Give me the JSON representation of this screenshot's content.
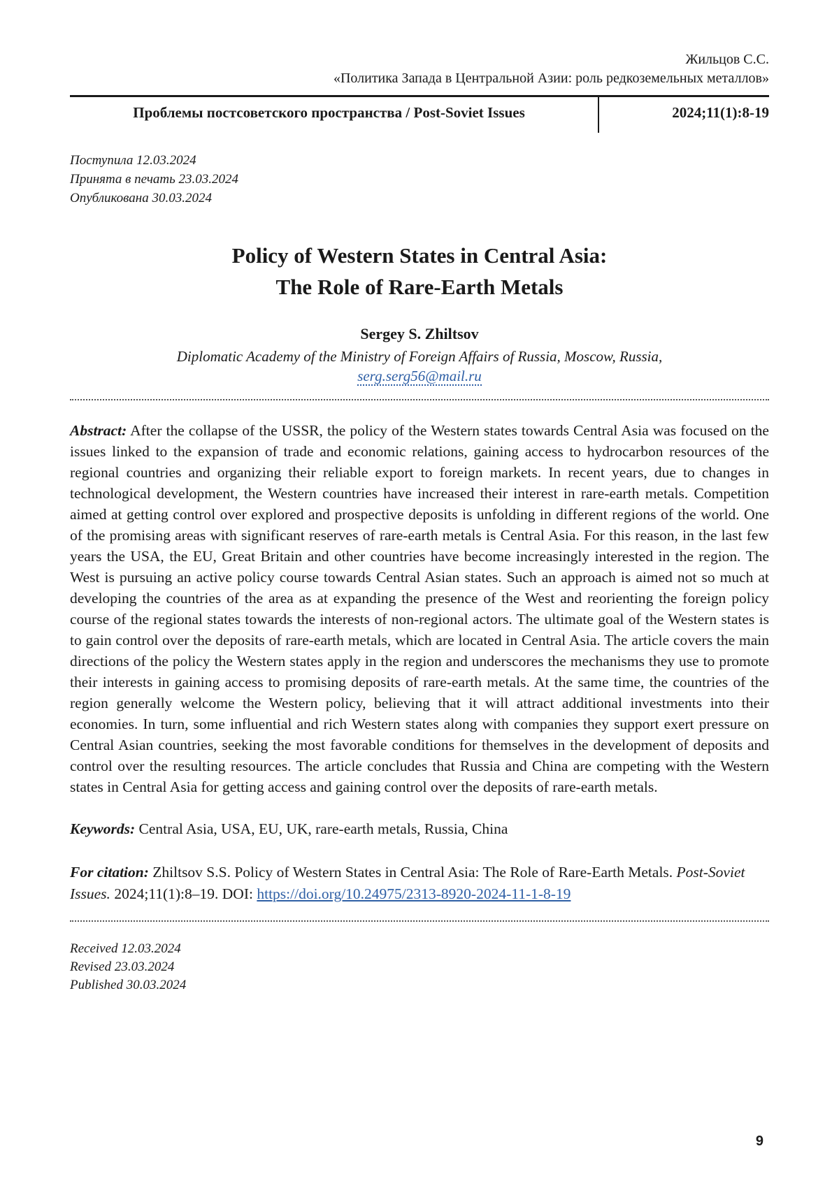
{
  "running_head": {
    "author": "Жильцов С.С.",
    "article_title_ru": "«Политика Запада в Центральной Азии: роль редкоземельных металлов»"
  },
  "journal_bar": {
    "journal_title": "Проблемы постсоветского пространства / Post-Soviet Issues",
    "issue_info": "2024;11(1):8-19"
  },
  "dates_ru": {
    "received": "Поступила 12.03.2024",
    "accepted": "Принята в печать 23.03.2024",
    "published": "Опубликована 30.03.2024"
  },
  "article": {
    "title_line1": "Policy of Western States in Central Asia:",
    "title_line2": "The Role of Rare-Earth Metals",
    "author": "Sergey S. Zhiltsov",
    "affiliation": "Diplomatic Academy of the Ministry of Foreign Affairs of Russia, Moscow, Russia,",
    "email": "serg.serg56@mail.ru"
  },
  "abstract": {
    "label": "Abstract:",
    "text": "After the collapse of the USSR, the policy of the Western states towards Central Asia was focused on the issues linked to the expansion of trade and economic relations, gaining access to hydrocarbon resources of the regional countries and organizing their reliable export to foreign markets. In recent years, due to changes in technological development, the Western countries have increased their interest in rare-earth metals. Competition aimed at getting control over explored and prospective deposits is unfolding in different regions of the world. One of the promising areas with significant reserves of rare-earth metals is Central Asia. For this reason, in the last few years the USA, the EU, Great Britain and other countries have become increasingly interested in the region. The West is pursuing an active policy course towards Central Asian states. Such an approach is aimed not so much at developing the countries of the area as at expanding the presence of the West and reorienting the foreign policy course of the regional states towards the interests of non-regional actors. The ultimate goal of the Western states is to gain control over the deposits of rare-earth metals, which are located in Central Asia. The article covers the main directions of the policy the Western states apply in the region and underscores the mechanisms they use to promote their interests in gaining access to promising deposits of rare-earth metals. At the same time, the countries of the region generally welcome the Western policy, believing that it will attract additional investments into their economies. In turn, some influential and rich Western states along with companies they support exert pressure on Central Asian countries, seeking the most favorable conditions for themselves in the development of deposits and control over the resulting resources. The article concludes that Russia and China are competing with the Western states in Central Asia for getting access and gaining control over the deposits of rare-earth metals."
  },
  "keywords": {
    "label": "Keywords:",
    "text": "Central Asia, USA, EU, UK, rare-earth metals, Russia, China"
  },
  "citation": {
    "label": "For citation:",
    "text_before_journal": "Zhiltsov S.S. Policy of Western States in Central Asia: The Role of Rare-Earth Metals.",
    "journal_italic": "Post-Soviet Issues.",
    "text_after_journal": "2024;11(1):8–19. DOI:",
    "doi_link": "https://doi.org/10.24975/2313-8920-2024-11-1-8-19"
  },
  "dates_en": {
    "received": "Received 12.03.2024",
    "revised": "Revised 23.03.2024",
    "published": "Published 30.03.2024"
  },
  "footer": {
    "page_number": "9"
  },
  "colors": {
    "link_blue": "#2e5fa5",
    "text": "#1a1a1a"
  }
}
